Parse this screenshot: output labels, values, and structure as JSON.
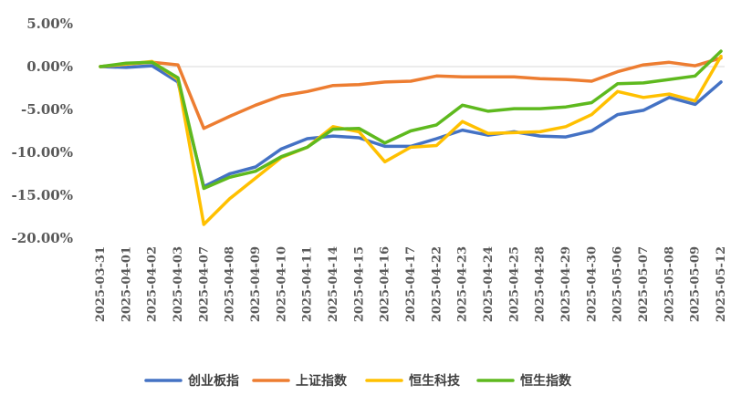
{
  "chart_data": {
    "type": "line",
    "x": [
      "2025-03-31",
      "2025-04-01",
      "2025-04-02",
      "2025-04-03",
      "2025-04-07",
      "2025-04-08",
      "2025-04-09",
      "2025-04-10",
      "2025-04-11",
      "2025-04-14",
      "2025-04-15",
      "2025-04-16",
      "2025-04-17",
      "2025-04-22",
      "2025-04-23",
      "2025-04-24",
      "2025-04-25",
      "2025-04-28",
      "2025-04-29",
      "2025-04-30",
      "2025-05-06",
      "2025-05-07",
      "2025-05-08",
      "2025-05-09",
      "2025-05-12"
    ],
    "y_ticks": [
      "5.00%",
      "0.00%",
      "-5.00%",
      "-10.00%",
      "-15.00%",
      "-20.00%"
    ],
    "ylim": [
      -20,
      5
    ],
    "y_unit": "%",
    "grid": false,
    "zero_line": true,
    "legend_position": "bottom",
    "series": [
      {
        "name": "创业板指",
        "color": "#4472C4",
        "values": [
          0.0,
          -0.1,
          0.1,
          -1.8,
          -14.0,
          -12.5,
          -11.7,
          -9.6,
          -8.4,
          -8.1,
          -8.3,
          -9.3,
          -9.3,
          -8.4,
          -7.4,
          -8.0,
          -7.6,
          -8.1,
          -8.2,
          -7.5,
          -5.6,
          -5.1,
          -3.6,
          -4.4,
          -1.8
        ]
      },
      {
        "name": "上证指数",
        "color": "#ED7D31",
        "values": [
          0.0,
          0.3,
          0.5,
          0.2,
          -7.2,
          -5.8,
          -4.5,
          -3.4,
          -2.9,
          -2.2,
          -2.1,
          -1.8,
          -1.7,
          -1.1,
          -1.2,
          -1.2,
          -1.2,
          -1.4,
          -1.5,
          -1.7,
          -0.6,
          0.2,
          0.5,
          0.1,
          1.0
        ]
      },
      {
        "name": "恒生科技",
        "color": "#FFC000",
        "values": [
          0.0,
          0.3,
          0.6,
          -1.5,
          -18.4,
          -15.4,
          -13.0,
          -10.6,
          -9.4,
          -7.0,
          -7.6,
          -11.1,
          -9.4,
          -9.2,
          -6.4,
          -7.8,
          -7.7,
          -7.6,
          -7.0,
          -5.6,
          -2.9,
          -3.6,
          -3.2,
          -4.0,
          1.2
        ]
      },
      {
        "name": "恒生指数",
        "color": "#5EB91E",
        "values": [
          0.0,
          0.4,
          0.5,
          -1.3,
          -14.2,
          -12.9,
          -12.2,
          -10.5,
          -9.4,
          -7.3,
          -7.2,
          -8.9,
          -7.5,
          -6.8,
          -4.5,
          -5.2,
          -4.9,
          -4.9,
          -4.7,
          -4.2,
          -2.0,
          -1.9,
          -1.5,
          -1.1,
          1.8
        ]
      }
    ]
  }
}
